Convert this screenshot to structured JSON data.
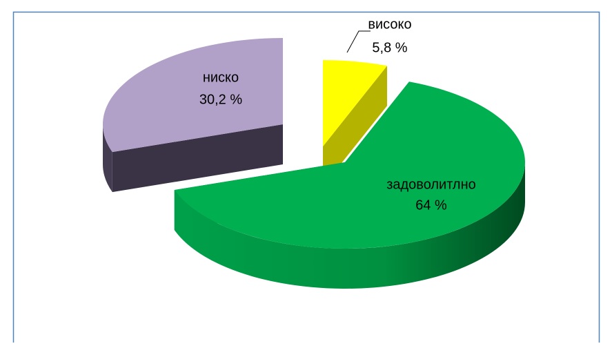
{
  "chart_data": {
    "type": "pie",
    "categories": [
      "високо",
      "задоволитлно",
      "ниско"
    ],
    "values": [
      5.8,
      64,
      30.2
    ],
    "value_labels": [
      "5,8 %",
      "64 %",
      "30,2 %"
    ],
    "colors": [
      "#ffff00",
      "#00b050",
      "#b1a0c7"
    ]
  }
}
